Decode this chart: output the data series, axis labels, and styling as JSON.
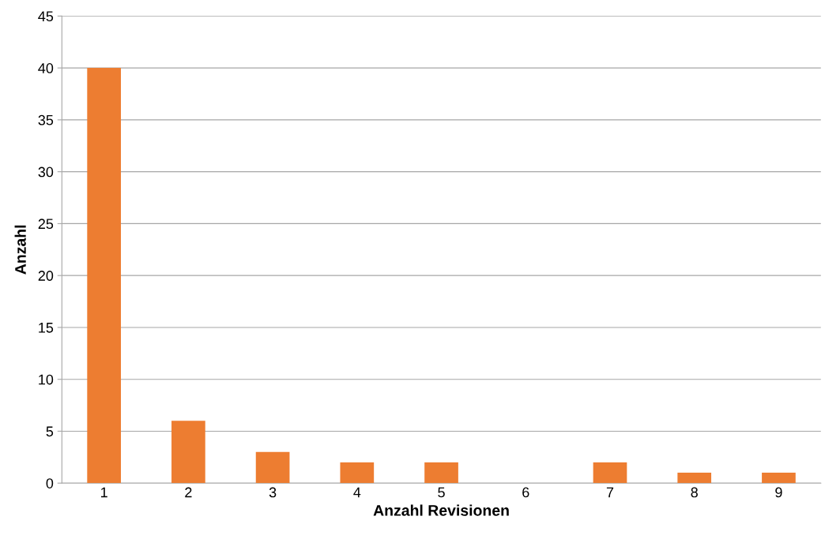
{
  "chart_data": {
    "type": "bar",
    "xlabel": "Anzahl Revisionen",
    "ylabel": "Anzahl",
    "categories": [
      "1",
      "2",
      "3",
      "4",
      "5",
      "6",
      "7",
      "8",
      "9"
    ],
    "values": [
      40,
      6,
      3,
      2,
      2,
      0,
      2,
      1,
      1
    ],
    "color": "#ed7d31",
    "ylim": [
      0,
      45
    ],
    "yticks": [
      0,
      5,
      10,
      15,
      20,
      25,
      30,
      35,
      40,
      45
    ],
    "grid": "y",
    "legend": false
  }
}
